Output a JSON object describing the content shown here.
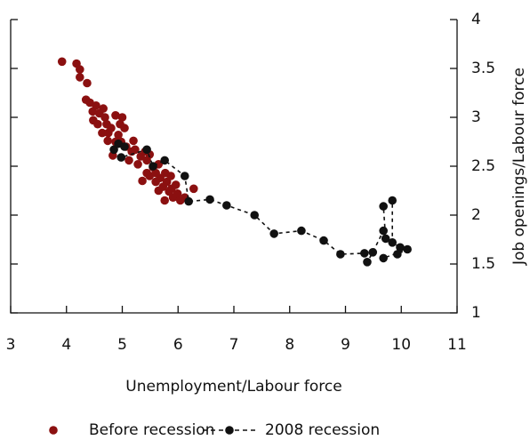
{
  "chart_data": {
    "type": "scatter",
    "x_label": "Unemployment/Labour force",
    "y_label": "Job openings/Labour force",
    "xlim": [
      3,
      11
    ],
    "xticks": [
      3,
      4,
      5,
      6,
      7,
      8,
      9,
      10,
      11
    ],
    "ylim": [
      1,
      4
    ],
    "yticks": [
      1,
      1.5,
      2,
      2.5,
      3,
      3.5,
      4
    ],
    "legend": "bottom",
    "series": [
      {
        "name": "Before recession",
        "color": "#8b1010",
        "line_style": "none",
        "x": [
          3.92,
          4.18,
          4.24,
          4.24,
          4.37,
          4.35,
          4.42,
          4.47,
          4.53,
          4.59,
          4.56,
          4.66,
          4.69,
          4.72,
          4.75,
          4.74,
          4.8,
          4.88,
          4.93,
          4.96,
          5.0,
          5.04,
          4.98,
          5.07,
          5.17,
          5.23,
          5.33,
          5.41,
          5.44,
          5.49,
          5.55,
          5.6,
          5.65,
          5.68,
          5.65,
          5.73,
          5.77,
          5.8,
          5.87,
          5.88,
          5.91,
          5.99,
          6.04,
          6.12,
          6.28,
          5.36,
          5.49,
          5.28,
          5.12,
          5.2,
          4.88,
          4.83,
          4.64,
          4.48,
          5.76,
          5.84,
          5.96,
          5.6,
          5.44
        ],
        "values": [
          3.57,
          3.55,
          3.49,
          3.41,
          3.35,
          3.18,
          3.15,
          3.06,
          3.12,
          3.04,
          2.93,
          3.09,
          3.0,
          2.93,
          2.84,
          2.76,
          2.89,
          3.02,
          2.82,
          2.93,
          3.0,
          2.89,
          2.75,
          2.7,
          2.65,
          2.67,
          2.6,
          2.65,
          2.56,
          2.62,
          2.49,
          2.43,
          2.52,
          2.38,
          2.25,
          2.29,
          2.43,
          2.34,
          2.4,
          2.27,
          2.18,
          2.22,
          2.15,
          2.18,
          2.27,
          2.35,
          2.4,
          2.52,
          2.56,
          2.76,
          2.75,
          2.61,
          2.84,
          2.97,
          2.15,
          2.24,
          2.31,
          2.34,
          2.43
        ]
      },
      {
        "name": "2008 recession",
        "color": "#111111",
        "line_style": "dashed",
        "x": [
          4.85,
          4.93,
          5.04,
          4.98,
          5.44,
          5.55,
          5.76,
          6.12,
          6.19,
          6.57,
          6.87,
          7.37,
          7.72,
          8.21,
          8.61,
          8.91,
          9.34,
          9.39,
          9.49,
          9.68,
          9.72,
          9.68,
          9.84,
          9.84,
          9.98,
          9.93,
          10.11,
          9.68
        ],
        "values": [
          2.67,
          2.73,
          2.7,
          2.59,
          2.67,
          2.5,
          2.56,
          2.4,
          2.14,
          2.16,
          2.1,
          2.0,
          1.81,
          1.84,
          1.74,
          1.6,
          1.61,
          1.52,
          1.62,
          1.84,
          1.76,
          2.09,
          2.15,
          1.72,
          1.67,
          1.6,
          1.65,
          1.56
        ]
      }
    ]
  }
}
